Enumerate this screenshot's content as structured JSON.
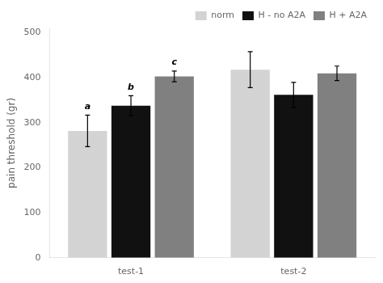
{
  "chart_data": {
    "type": "bar",
    "categories": [
      "test-1",
      "test-2"
    ],
    "series": [
      {
        "name": "norm",
        "color": "#d3d3d3",
        "values": [
          282,
          418
        ],
        "errors": [
          35,
          40
        ]
      },
      {
        "name": "H - no A2A",
        "color": "#111111",
        "values": [
          338,
          362
        ],
        "errors": [
          22,
          28
        ]
      },
      {
        "name": "H + A2A",
        "color": "#808080",
        "values": [
          403,
          410
        ],
        "errors": [
          12,
          16
        ]
      }
    ],
    "annotations": [
      {
        "series": "norm",
        "category": "test-1",
        "text": "a"
      },
      {
        "series": "H - no A2A",
        "category": "test-1",
        "text": "b"
      },
      {
        "series": "H + A2A",
        "category": "test-1",
        "text": "c"
      }
    ],
    "ylabel": "pain threshold (gr)",
    "ylim": [
      0,
      510
    ],
    "yticks": [
      0,
      100,
      200,
      300,
      400,
      500
    ],
    "grid": false,
    "legend": "upper right"
  }
}
